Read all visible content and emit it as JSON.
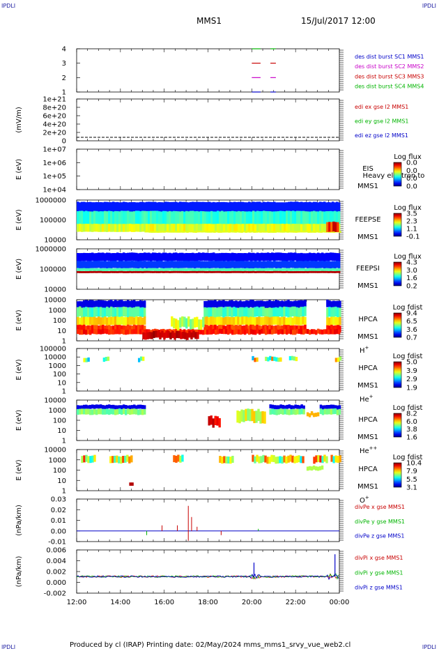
{
  "header": {
    "corner_label": "IPDLI",
    "mission": "MMS1",
    "datetime": "15/Jul/2017 12:00"
  },
  "footer": {
    "text": "Produced by cl (IRAP)   Printing date: 02/May/2024   mms_mms1_srvy_vue_web2.cl"
  },
  "chart_data": {
    "type": "stacked-panels",
    "x_ticks": [
      "12:00",
      "14:00",
      "16:00",
      "18:00",
      "20:00",
      "22:00",
      "00:00"
    ],
    "x_range_hours": [
      12,
      24
    ],
    "panels": [
      {
        "id": "burst",
        "type": "timeline",
        "ylabel": "",
        "yticks": [
          "4",
          "3",
          "2",
          "1"
        ],
        "legend": [
          {
            "text": "des dist burst SC1 MMS1",
            "color": "#0000c8"
          },
          {
            "text": "des dist burst SC2 MMS2",
            "color": "#c800c8"
          },
          {
            "text": "des dist burst SC3 MMS3",
            "color": "#c80000"
          },
          {
            "text": "des dist burst SC4 MMS4",
            "color": "#00b400"
          }
        ],
        "segments": [
          {
            "sc": 4,
            "color": "#00b400",
            "ranges": [
              [
                20.0,
                20.4
              ],
              [
                20.85,
                21.1
              ]
            ]
          },
          {
            "sc": 3,
            "color": "#c80000",
            "ranges": [
              [
                20.0,
                20.4
              ],
              [
                20.85,
                21.1
              ]
            ]
          },
          {
            "sc": 2,
            "color": "#c800c8",
            "ranges": [
              [
                20.0,
                20.4
              ],
              [
                20.85,
                21.1
              ]
            ]
          },
          {
            "sc": 1,
            "color": "#0000c8",
            "ranges": [
              [
                20.0,
                20.4
              ],
              [
                20.85,
                21.1
              ]
            ]
          }
        ]
      },
      {
        "id": "edi",
        "type": "line",
        "ylabel": "(mV/m)",
        "yticks": [
          "1e+21",
          "8e+20",
          "6e+20",
          "4e+20",
          "2e+20",
          "0"
        ],
        "legend": [
          {
            "text": "edi ex gse l2 MMS1",
            "color": "#c80000"
          },
          {
            "text": "edi ey gse l2 MMS1",
            "color": "#00b400"
          },
          {
            "text": "edi ez gse l2 MMS1",
            "color": "#0000c8"
          }
        ]
      },
      {
        "id": "eis",
        "type": "spectrogram",
        "ylabel": "E (eV)",
        "yticks": [
          "1e+07",
          "1e+06",
          "1e+05",
          "1e+04"
        ],
        "instrument": "EIS",
        "overlay": "Heavy electron to",
        "sc": "MMS1",
        "cbar_title": "Log flux",
        "cbar_ticks": [
          "0.0",
          "0.0",
          "0.0",
          "0.0"
        ]
      },
      {
        "id": "feepse",
        "type": "spectrogram",
        "ylabel": "E (eV)",
        "yticks": [
          "1000000",
          "100000",
          "10000"
        ],
        "instrument": "FEEPSE",
        "sc": "MMS1",
        "cbar_title": "Log flux",
        "cbar_ticks": [
          "3.5",
          "2.3",
          "1.1",
          "-0.1"
        ]
      },
      {
        "id": "feepsi",
        "type": "spectrogram",
        "ylabel": "E (eV)",
        "yticks": [
          "1000000",
          "100000",
          "10000"
        ],
        "instrument": "FEEPSI",
        "sc": "MMS1",
        "cbar_title": "Log flux",
        "cbar_ticks": [
          "4.3",
          "3.0",
          "1.6",
          "0.2"
        ]
      },
      {
        "id": "hpca_h",
        "type": "spectrogram",
        "ylabel": "E (eV)",
        "yticks": [
          "10000",
          "1000",
          "100",
          "10",
          "1"
        ],
        "instrument": "HPCA",
        "sc": "MMS1",
        "species": "H",
        "species_sup": "+",
        "cbar_title": "Log fdist",
        "cbar_ticks": [
          "9.4",
          "6.5",
          "3.6",
          "0.7"
        ]
      },
      {
        "id": "hpca_he",
        "type": "spectrogram",
        "ylabel": "E (eV)",
        "yticks": [
          "100000",
          "10000",
          "1000",
          "100",
          "10",
          "1"
        ],
        "instrument": "HPCA",
        "sc": "MMS1",
        "species": "He",
        "species_sup": "+",
        "cbar_title": "Log fdist",
        "cbar_ticks": [
          "5.0",
          "3.9",
          "2.9",
          "1.9"
        ]
      },
      {
        "id": "hpca_he2",
        "type": "spectrogram",
        "ylabel": "E (eV)",
        "yticks": [
          "10000",
          "1000",
          "100",
          "10",
          "1"
        ],
        "instrument": "HPCA",
        "sc": "MMS1",
        "species": "He",
        "species_sup": "++",
        "cbar_title": "Log fdist",
        "cbar_ticks": [
          "8.2",
          "6.0",
          "3.8",
          "1.6"
        ]
      },
      {
        "id": "hpca_o",
        "type": "spectrogram",
        "ylabel": "E (eV)",
        "yticks": [
          "10000",
          "1000",
          "100",
          "10",
          "1"
        ],
        "instrument": "HPCA",
        "sc": "MMS1",
        "species": "O",
        "species_sup": "+",
        "cbar_title": "Log fdist",
        "cbar_ticks": [
          "10.4",
          "7.9",
          "5.5",
          "3.1"
        ]
      },
      {
        "id": "divpe",
        "type": "line",
        "ylabel": "(nPa/km)",
        "yticks": [
          "0.03",
          "0.02",
          "0.01",
          "0.00",
          "-0.01"
        ],
        "legend": [
          {
            "text": "divPe x gse MMS1",
            "color": "#c80000"
          },
          {
            "text": "divPe y gse MMS1",
            "color": "#00b400"
          },
          {
            "text": "divPe z gse MMS1",
            "color": "#0000c8"
          }
        ]
      },
      {
        "id": "divpi",
        "type": "line",
        "ylabel": "(nPa/km)",
        "yticks": [
          "0.006",
          "0.004",
          "0.002",
          "0.000",
          "-0.002"
        ],
        "legend": [
          {
            "text": "divPi x gse MMS1",
            "color": "#c80000"
          },
          {
            "text": "divPi y gse MMS1",
            "color": "#00b400"
          },
          {
            "text": "divPi z gse MMS1",
            "color": "#0000c8"
          }
        ]
      }
    ]
  }
}
